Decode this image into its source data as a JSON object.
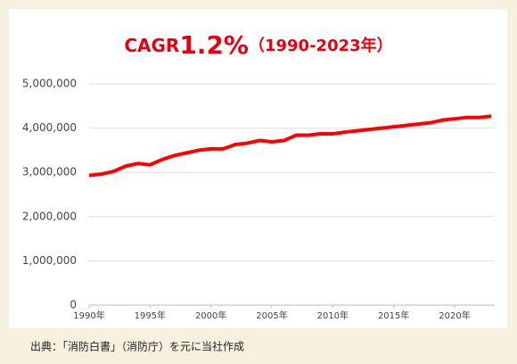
{
  "chart_data": {
    "type": "line",
    "title_parts": [
      "CAGR",
      "1.2%",
      "（1990-2023年）"
    ],
    "x": [
      1990,
      1991,
      1992,
      1993,
      1994,
      1995,
      1996,
      1997,
      1998,
      1999,
      2000,
      2001,
      2002,
      2003,
      2004,
      2005,
      2006,
      2007,
      2008,
      2009,
      2010,
      2011,
      2012,
      2013,
      2014,
      2015,
      2016,
      2017,
      2018,
      2019,
      2020,
      2021,
      2022,
      2023
    ],
    "series": [
      {
        "color": "#ff0000",
        "values": [
          2930000,
          2960000,
          3020000,
          3140000,
          3200000,
          3170000,
          3290000,
          3380000,
          3440000,
          3500000,
          3530000,
          3530000,
          3630000,
          3660000,
          3720000,
          3690000,
          3720000,
          3840000,
          3840000,
          3870000,
          3870000,
          3910000,
          3940000,
          3970000,
          4000000,
          4030000,
          4060000,
          4090000,
          4120000,
          4180000,
          4210000,
          4240000,
          4240000,
          4270000
        ]
      }
    ],
    "xlim": [
      1990,
      2023
    ],
    "xticks": [
      {
        "value": 1990,
        "label": "1990年"
      },
      {
        "value": 1995,
        "label": "1995年"
      },
      {
        "value": 2000,
        "label": "2000年"
      },
      {
        "value": 2005,
        "label": "2005年"
      },
      {
        "value": 2010,
        "label": "2010年"
      },
      {
        "value": 2015,
        "label": "2015年"
      },
      {
        "value": 2020,
        "label": "2020年"
      }
    ],
    "ylim": [
      0,
      5000000
    ],
    "yticks": [
      0,
      {
        "value": 1000000,
        "label": "1,000,000"
      },
      {
        "value": 2000000,
        "label": "2,000,000"
      },
      {
        "value": 3000000,
        "label": "3,000,000"
      },
      {
        "value": 4000000,
        "label": "4,000,000"
      },
      {
        "value": 5000000,
        "label": "5,000,000"
      }
    ],
    "grid": true,
    "source": "出典：「消防白書」（消防庁）を元に当社作成"
  }
}
